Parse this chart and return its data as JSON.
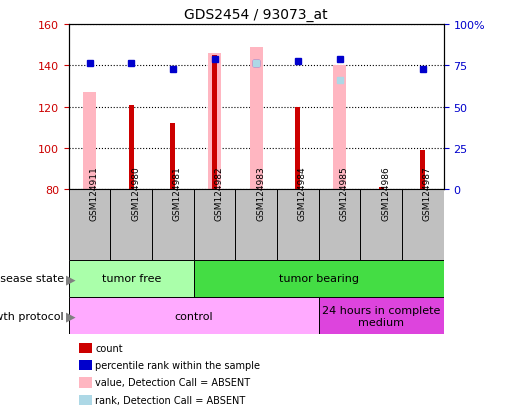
{
  "title": "GDS2454 / 93073_at",
  "samples": [
    "GSM124911",
    "GSM124980",
    "GSM124981",
    "GSM124982",
    "GSM124983",
    "GSM124984",
    "GSM124985",
    "GSM124986",
    "GSM124987"
  ],
  "ylim": [
    80,
    160
  ],
  "yticks_left": [
    80,
    100,
    120,
    140,
    160
  ],
  "yticks_right": [
    0,
    25,
    50,
    75,
    100
  ],
  "ylim_right": [
    0,
    100
  ],
  "red_bars": [
    80,
    121,
    112,
    145,
    80,
    120,
    80,
    81,
    99
  ],
  "pink_bars": [
    127,
    80,
    80,
    146,
    149,
    80,
    140,
    80,
    80
  ],
  "blue_squares": [
    141,
    141,
    138,
    143,
    141,
    142,
    143,
    80,
    138
  ],
  "light_blue_squares": [
    80,
    80,
    80,
    80,
    141,
    80,
    133,
    80,
    80
  ],
  "blue_sq_visible": [
    true,
    true,
    true,
    true,
    true,
    true,
    true,
    false,
    true
  ],
  "light_blue_sq_visible": [
    false,
    false,
    false,
    false,
    true,
    false,
    true,
    false,
    false
  ],
  "pink_bar_visible": [
    true,
    false,
    false,
    true,
    true,
    false,
    true,
    false,
    false
  ],
  "red_bar_visible": [
    false,
    true,
    true,
    true,
    false,
    true,
    false,
    true,
    true
  ],
  "disease_state_groups": [
    {
      "label": "tumor free",
      "start": 0,
      "end": 3,
      "color": "#aaffaa"
    },
    {
      "label": "tumor bearing",
      "start": 3,
      "end": 9,
      "color": "#44dd44"
    }
  ],
  "growth_protocol_groups": [
    {
      "label": "control",
      "start": 0,
      "end": 6,
      "color": "#ffaaff"
    },
    {
      "label": "24 hours in complete\nmedium",
      "start": 6,
      "end": 9,
      "color": "#dd44dd"
    }
  ],
  "legend_items": [
    {
      "color": "#CC0000",
      "label": "count"
    },
    {
      "color": "#0000CC",
      "label": "percentile rank within the sample"
    },
    {
      "color": "#FFB6C1",
      "label": "value, Detection Call = ABSENT"
    },
    {
      "color": "#ADD8E6",
      "label": "rank, Detection Call = ABSENT"
    }
  ],
  "pink_bar_width": 0.3,
  "red_bar_width": 0.12,
  "left_color": "#CC0000",
  "right_axis_color": "#0000CC",
  "sample_box_color": "#C0C0C0"
}
